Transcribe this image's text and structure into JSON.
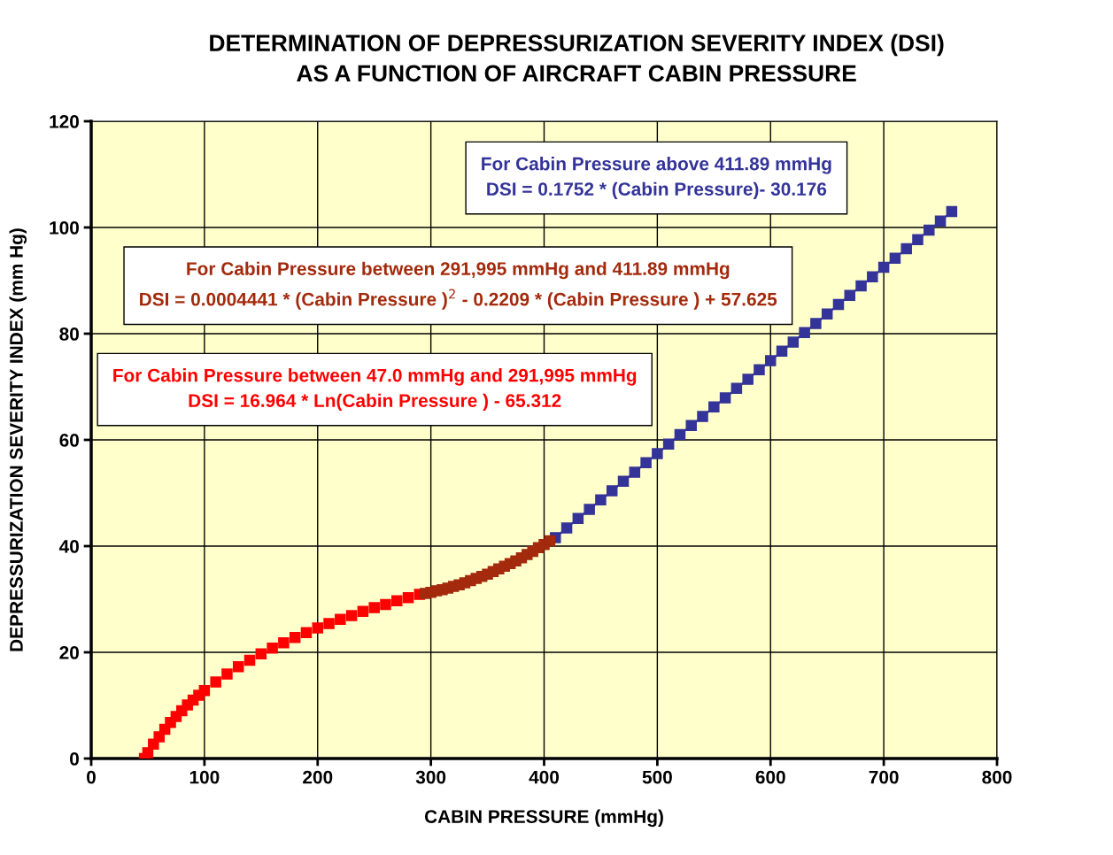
{
  "chart_data": {
    "type": "scatter",
    "title": "DETERMINATION OF DEPRESSURIZATION SEVERITY INDEX (DSI)\nAS A FUNCTION OF AIRCRAFT CABIN PRESSURE",
    "xlabel": "CABIN PRESSURE (mmHg)",
    "ylabel": "DEPRESSURIZATION SEVERITY INDEX (mm Hg)",
    "xlim": [
      0,
      800
    ],
    "xticks": [
      0,
      100,
      200,
      300,
      400,
      500,
      600,
      700,
      800
    ],
    "ylim": [
      0,
      120
    ],
    "yticks": [
      0,
      20,
      40,
      60,
      80,
      100,
      120
    ],
    "grid": true,
    "marker": "square",
    "legend": false,
    "annotations": [
      "For Cabin Pressure above 411.89 mmHg\nDSI = 0.1752 * (Cabin Pressure)- 30.176",
      "For Cabin Pressure between 291,995 mmHg and 411.89 mmHg\nDSI = 0.0004441 * (Cabin Pressure )$^{2}$ - 0.2209 * (Cabin Pressure ) + 57.625",
      "For Cabin Pressure between 47.0 mmHg and 291,995 mmHg\nDSI = 16.964 * Ln(Cabin Pressure ) - 65.312"
    ],
    "series": [
      {
        "color": "#ff0000",
        "x": [
          47,
          50,
          55,
          60,
          65,
          70,
          75,
          80,
          85,
          90,
          95,
          100,
          110,
          120,
          130,
          140,
          150,
          160,
          170,
          180,
          190,
          200,
          210,
          220,
          230,
          240,
          250,
          260,
          270,
          280,
          290
        ],
        "values": [
          0.0,
          1.1,
          2.7,
          4.1,
          5.5,
          6.8,
          7.9,
          9.0,
          10.1,
          11.0,
          11.9,
          12.8,
          14.4,
          15.9,
          17.3,
          18.5,
          19.7,
          20.8,
          21.8,
          22.8,
          23.7,
          24.6,
          25.4,
          26.2,
          26.9,
          27.7,
          28.4,
          29.0,
          29.7,
          30.3,
          30.9
        ]
      },
      {
        "color": "#a32a0c",
        "x": [
          295,
          300,
          305,
          310,
          315,
          320,
          325,
          330,
          335,
          340,
          345,
          350,
          355,
          360,
          365,
          370,
          375,
          380,
          385,
          390,
          395,
          400,
          405
        ],
        "values": [
          31.1,
          31.3,
          31.6,
          31.8,
          32.1,
          32.4,
          32.7,
          33.1,
          33.5,
          33.9,
          34.3,
          34.7,
          35.2,
          35.7,
          36.2,
          36.7,
          37.2,
          37.8,
          38.4,
          39.0,
          39.7,
          40.3,
          41.0
        ]
      },
      {
        "type": "line",
        "color": "#333399",
        "x": [
          410,
          420,
          430,
          440,
          450,
          460,
          470,
          480,
          490,
          500,
          510,
          520,
          530,
          540,
          550,
          560,
          570,
          580,
          590,
          600,
          610,
          620,
          630,
          640,
          650,
          660,
          670,
          680,
          690,
          700,
          710,
          720,
          730,
          740,
          750,
          760
        ],
        "values": [
          41.6,
          43.4,
          45.2,
          46.9,
          48.7,
          50.4,
          52.2,
          53.9,
          55.7,
          57.4,
          59.2,
          61.0,
          62.7,
          64.4,
          66.2,
          67.9,
          69.7,
          71.4,
          73.2,
          74.9,
          76.7,
          78.4,
          80.2,
          81.9,
          83.7,
          85.5,
          87.2,
          89.0,
          90.7,
          92.5,
          94.2,
          96.0,
          97.7,
          99.5,
          101.2,
          103.0
        ]
      }
    ]
  }
}
